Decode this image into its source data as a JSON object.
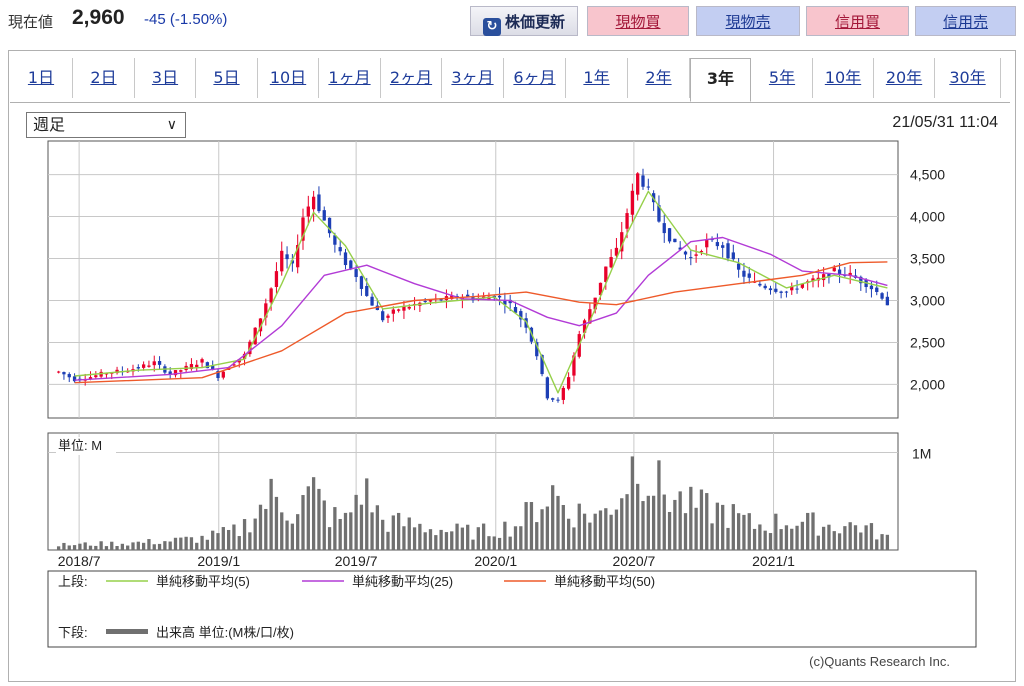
{
  "header": {
    "price_label": "現在値",
    "price_value": "2,960",
    "price_change": "-45 (-1.50%)",
    "refresh_label": "株価更新",
    "buttons": [
      "現物買",
      "現物売",
      "信用買",
      "信用売"
    ]
  },
  "tabs": [
    "1日",
    "2日",
    "3日",
    "5日",
    "10日",
    "1ヶ月",
    "2ヶ月",
    "3ヶ月",
    "6ヶ月",
    "1年",
    "2年",
    "3年",
    "5年",
    "10年",
    "20年",
    "30年"
  ],
  "active_tab": "3年",
  "period_select": "週足",
  "timestamp": "21/05/31 11:04",
  "credit": "(c)Quants Research Inc.",
  "colors": {
    "up": "#e8002a",
    "down": "#1d3fb5",
    "ma5": "#96d04a",
    "ma25": "#b23bd6",
    "ma50": "#ee5a2a",
    "volume": "#707070",
    "grid": "#c8c8c8"
  },
  "chart_data": {
    "type": "candlestick",
    "price": {
      "ylim": [
        1600,
        4900
      ],
      "y_ticks": [
        2000,
        2500,
        3000,
        3500,
        4000,
        4500
      ],
      "y_tick_labels": [
        "2,000",
        "2,500",
        "3,000",
        "3,500",
        "4,000",
        "4,500"
      ],
      "close_path": [
        [
          "2018-06-04",
          2150
        ],
        [
          "2018-06-25",
          2060
        ],
        [
          "2018-07-16",
          2090
        ],
        [
          "2018-08-06",
          2140
        ],
        [
          "2018-08-27",
          2160
        ],
        [
          "2018-09-17",
          2200
        ],
        [
          "2018-10-08",
          2260
        ],
        [
          "2018-10-29",
          2120
        ],
        [
          "2018-11-19",
          2200
        ],
        [
          "2018-12-10",
          2280
        ],
        [
          "2018-12-31",
          2100
        ],
        [
          "2019-01-14",
          2220
        ],
        [
          "2019-02-04",
          2350
        ],
        [
          "2019-02-25",
          2800
        ],
        [
          "2019-03-11",
          3150
        ],
        [
          "2019-03-25",
          3550
        ],
        [
          "2019-04-08",
          3400
        ],
        [
          "2019-04-22",
          4000
        ],
        [
          "2019-05-06",
          4250
        ],
        [
          "2019-05-20",
          3950
        ],
        [
          "2019-06-03",
          3650
        ],
        [
          "2019-06-17",
          3450
        ],
        [
          "2019-07-01",
          3300
        ],
        [
          "2019-07-15",
          3050
        ],
        [
          "2019-08-05",
          2780
        ],
        [
          "2019-08-26",
          2900
        ],
        [
          "2019-09-16",
          2950
        ],
        [
          "2019-10-07",
          3000
        ],
        [
          "2019-10-28",
          3020
        ],
        [
          "2019-11-18",
          3050
        ],
        [
          "2019-12-09",
          3020
        ],
        [
          "2019-12-30",
          3060
        ],
        [
          "2020-01-20",
          2950
        ],
        [
          "2020-02-10",
          2700
        ],
        [
          "2020-02-24",
          2350
        ],
        [
          "2020-03-09",
          1850
        ],
        [
          "2020-03-23",
          1800
        ],
        [
          "2020-04-06",
          2100
        ],
        [
          "2020-04-20",
          2600
        ],
        [
          "2020-05-11",
          3050
        ],
        [
          "2020-05-25",
          3400
        ],
        [
          "2020-06-08",
          3600
        ],
        [
          "2020-06-22",
          4050
        ],
        [
          "2020-07-06",
          4500
        ],
        [
          "2020-07-20",
          4300
        ],
        [
          "2020-08-03",
          3950
        ],
        [
          "2020-08-24",
          3650
        ],
        [
          "2020-09-14",
          3500
        ],
        [
          "2020-10-05",
          3700
        ],
        [
          "2020-10-26",
          3650
        ],
        [
          "2020-11-16",
          3350
        ],
        [
          "2020-12-07",
          3200
        ],
        [
          "2020-12-28",
          3150
        ],
        [
          "2021-01-18",
          3100
        ],
        [
          "2021-02-08",
          3200
        ],
        [
          "2021-03-01",
          3250
        ],
        [
          "2021-03-22",
          3350
        ],
        [
          "2021-04-12",
          3300
        ],
        [
          "2021-05-03",
          3200
        ],
        [
          "2021-05-24",
          3050
        ],
        [
          "2021-05-31",
          2960
        ]
      ],
      "ma5": [
        [
          "2018-06-25",
          2100
        ],
        [
          "2018-09-17",
          2170
        ],
        [
          "2018-12-10",
          2200
        ],
        [
          "2019-02-04",
          2300
        ],
        [
          "2019-03-25",
          3200
        ],
        [
          "2019-05-06",
          4050
        ],
        [
          "2019-06-17",
          3650
        ],
        [
          "2019-08-05",
          2900
        ],
        [
          "2019-10-07",
          2970
        ],
        [
          "2019-12-30",
          3040
        ],
        [
          "2020-02-10",
          2750
        ],
        [
          "2020-03-23",
          1900
        ],
        [
          "2020-05-11",
          2900
        ],
        [
          "2020-06-22",
          3800
        ],
        [
          "2020-07-20",
          4300
        ],
        [
          "2020-09-14",
          3600
        ],
        [
          "2020-11-16",
          3450
        ],
        [
          "2021-01-18",
          3150
        ],
        [
          "2021-03-22",
          3300
        ],
        [
          "2021-05-31",
          3150
        ]
      ],
      "ma25": [
        [
          "2018-06-25",
          2050
        ],
        [
          "2018-10-29",
          2120
        ],
        [
          "2019-01-14",
          2200
        ],
        [
          "2019-03-25",
          2700
        ],
        [
          "2019-05-20",
          3300
        ],
        [
          "2019-07-15",
          3420
        ],
        [
          "2019-09-16",
          3200
        ],
        [
          "2019-11-18",
          3020
        ],
        [
          "2020-01-20",
          3000
        ],
        [
          "2020-03-09",
          2800
        ],
        [
          "2020-04-20",
          2700
        ],
        [
          "2020-06-08",
          2850
        ],
        [
          "2020-07-20",
          3300
        ],
        [
          "2020-09-14",
          3700
        ],
        [
          "2020-10-26",
          3750
        ],
        [
          "2020-12-28",
          3550
        ],
        [
          "2021-02-08",
          3350
        ],
        [
          "2021-04-12",
          3300
        ],
        [
          "2021-05-31",
          3180
        ]
      ],
      "ma50": [
        [
          "2018-06-25",
          2020
        ],
        [
          "2018-12-10",
          2080
        ],
        [
          "2019-03-25",
          2400
        ],
        [
          "2019-06-17",
          2850
        ],
        [
          "2019-09-16",
          3000
        ],
        [
          "2019-12-09",
          3050
        ],
        [
          "2020-02-10",
          3100
        ],
        [
          "2020-04-20",
          2980
        ],
        [
          "2020-06-08",
          2950
        ],
        [
          "2020-08-24",
          3100
        ],
        [
          "2020-11-16",
          3200
        ],
        [
          "2021-02-08",
          3300
        ],
        [
          "2021-04-12",
          3450
        ],
        [
          "2021-05-31",
          3460
        ]
      ]
    },
    "volume": {
      "unit_label": "単位: M",
      "ylim": [
        0,
        1.2
      ],
      "y_tick_labels": [
        "1M"
      ],
      "series": [
        [
          "2018-06-04",
          0.05
        ],
        [
          "2018-07-16",
          0.06
        ],
        [
          "2018-09-03",
          0.07
        ],
        [
          "2018-10-22",
          0.09
        ],
        [
          "2018-12-10",
          0.12
        ],
        [
          "2019-01-28",
          0.2
        ],
        [
          "2019-03-11",
          0.55
        ],
        [
          "2019-04-08",
          0.4
        ],
        [
          "2019-05-06",
          0.6
        ],
        [
          "2019-05-27",
          0.35
        ],
        [
          "2019-06-17",
          0.3
        ],
        [
          "2019-07-08",
          0.65
        ],
        [
          "2019-08-05",
          0.3
        ],
        [
          "2019-09-16",
          0.25
        ],
        [
          "2019-10-28",
          0.2
        ],
        [
          "2019-12-09",
          0.18
        ],
        [
          "2020-01-27",
          0.25
        ],
        [
          "2020-02-24",
          0.45
        ],
        [
          "2020-03-16",
          0.6
        ],
        [
          "2020-04-06",
          0.4
        ],
        [
          "2020-05-18",
          0.35
        ],
        [
          "2020-06-15",
          0.6
        ],
        [
          "2020-07-06",
          1.0
        ],
        [
          "2020-07-20",
          0.75
        ],
        [
          "2020-08-17",
          0.55
        ],
        [
          "2020-09-14",
          0.45
        ],
        [
          "2020-10-26",
          0.4
        ],
        [
          "2020-12-07",
          0.25
        ],
        [
          "2021-01-25",
          0.3
        ],
        [
          "2021-03-15",
          0.25
        ],
        [
          "2021-04-26",
          0.25
        ],
        [
          "2021-05-31",
          0.12
        ]
      ]
    },
    "x_ticks": [
      "2018/7",
      "2019/1",
      "2019/7",
      "2020/1",
      "2020/7",
      "2021/1"
    ],
    "legend": {
      "upper_label": "上段:",
      "lower_label": "下段:",
      "upper_items": [
        {
          "name": "単純移動平均(5)",
          "color_key": "ma5"
        },
        {
          "name": "単純移動平均(25)",
          "color_key": "ma25"
        },
        {
          "name": "単純移動平均(50)",
          "color_key": "ma50"
        }
      ],
      "lower_items": [
        {
          "name": "出来高 単位:(M株/口/枚)",
          "color_key": "volume"
        }
      ]
    }
  }
}
